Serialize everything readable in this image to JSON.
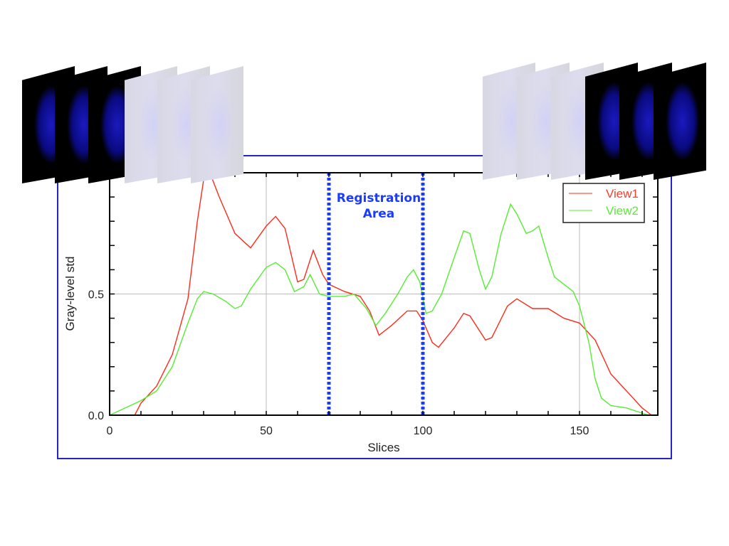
{
  "chart_data": {
    "type": "line",
    "title": "",
    "xlabel": "Slices",
    "ylabel": "Gray-level std",
    "xlim": [
      0,
      175
    ],
    "ylim": [
      0,
      1.0
    ],
    "xticks": [
      "0",
      "50",
      "100",
      "150"
    ],
    "yticks": [
      "0.0",
      "0.5"
    ],
    "grid": true,
    "legend": "top-right",
    "annotation": {
      "label": "Registration Area",
      "range": [
        70,
        100
      ],
      "color": "#1a3cff"
    },
    "series": [
      {
        "name": "View1",
        "color": "#ff2a1a",
        "x": [
          8,
          10,
          15,
          20,
          25,
          28,
          30,
          32,
          35,
          40,
          45,
          50,
          53,
          56,
          60,
          62,
          65,
          68,
          70,
          75,
          80,
          83,
          86,
          90,
          95,
          98,
          100,
          103,
          105,
          110,
          113,
          115,
          120,
          122,
          127,
          130,
          135,
          140,
          145,
          150,
          155,
          160,
          165,
          170,
          173
        ],
        "y": [
          0,
          0.05,
          0.12,
          0.25,
          0.48,
          0.8,
          0.97,
          1.0,
          0.9,
          0.75,
          0.69,
          0.78,
          0.82,
          0.77,
          0.55,
          0.56,
          0.68,
          0.58,
          0.54,
          0.51,
          0.49,
          0.43,
          0.33,
          0.37,
          0.43,
          0.43,
          0.39,
          0.3,
          0.28,
          0.36,
          0.42,
          0.41,
          0.31,
          0.32,
          0.45,
          0.48,
          0.44,
          0.44,
          0.4,
          0.38,
          0.31,
          0.17,
          0.1,
          0.03,
          0
        ]
      },
      {
        "name": "View2",
        "color": "#55ee33",
        "x": [
          0,
          5,
          10,
          15,
          20,
          25,
          28,
          30,
          33,
          37,
          40,
          42,
          45,
          50,
          53,
          56,
          59,
          62,
          64,
          67,
          70,
          75,
          78,
          82,
          85,
          88,
          92,
          95,
          97,
          99,
          101,
          103,
          106,
          110,
          113,
          115,
          118,
          120,
          122,
          125,
          128,
          130,
          133,
          135,
          137,
          140,
          142,
          148,
          150,
          153,
          155,
          157,
          160,
          165,
          172
        ],
        "y": [
          0,
          0.03,
          0.06,
          0.1,
          0.2,
          0.38,
          0.48,
          0.51,
          0.5,
          0.47,
          0.44,
          0.45,
          0.52,
          0.61,
          0.63,
          0.6,
          0.51,
          0.53,
          0.58,
          0.5,
          0.49,
          0.49,
          0.5,
          0.44,
          0.37,
          0.42,
          0.5,
          0.57,
          0.6,
          0.55,
          0.42,
          0.43,
          0.5,
          0.65,
          0.76,
          0.75,
          0.6,
          0.52,
          0.57,
          0.75,
          0.87,
          0.83,
          0.75,
          0.76,
          0.78,
          0.65,
          0.57,
          0.51,
          0.45,
          0.3,
          0.15,
          0.07,
          0.04,
          0.03,
          0
        ]
      }
    ]
  },
  "images": {
    "left_stack": [
      "dark",
      "dark",
      "dark",
      "light",
      "light",
      "light"
    ],
    "right_stack": [
      "light",
      "light",
      "light",
      "dark",
      "dark",
      "dark"
    ]
  }
}
